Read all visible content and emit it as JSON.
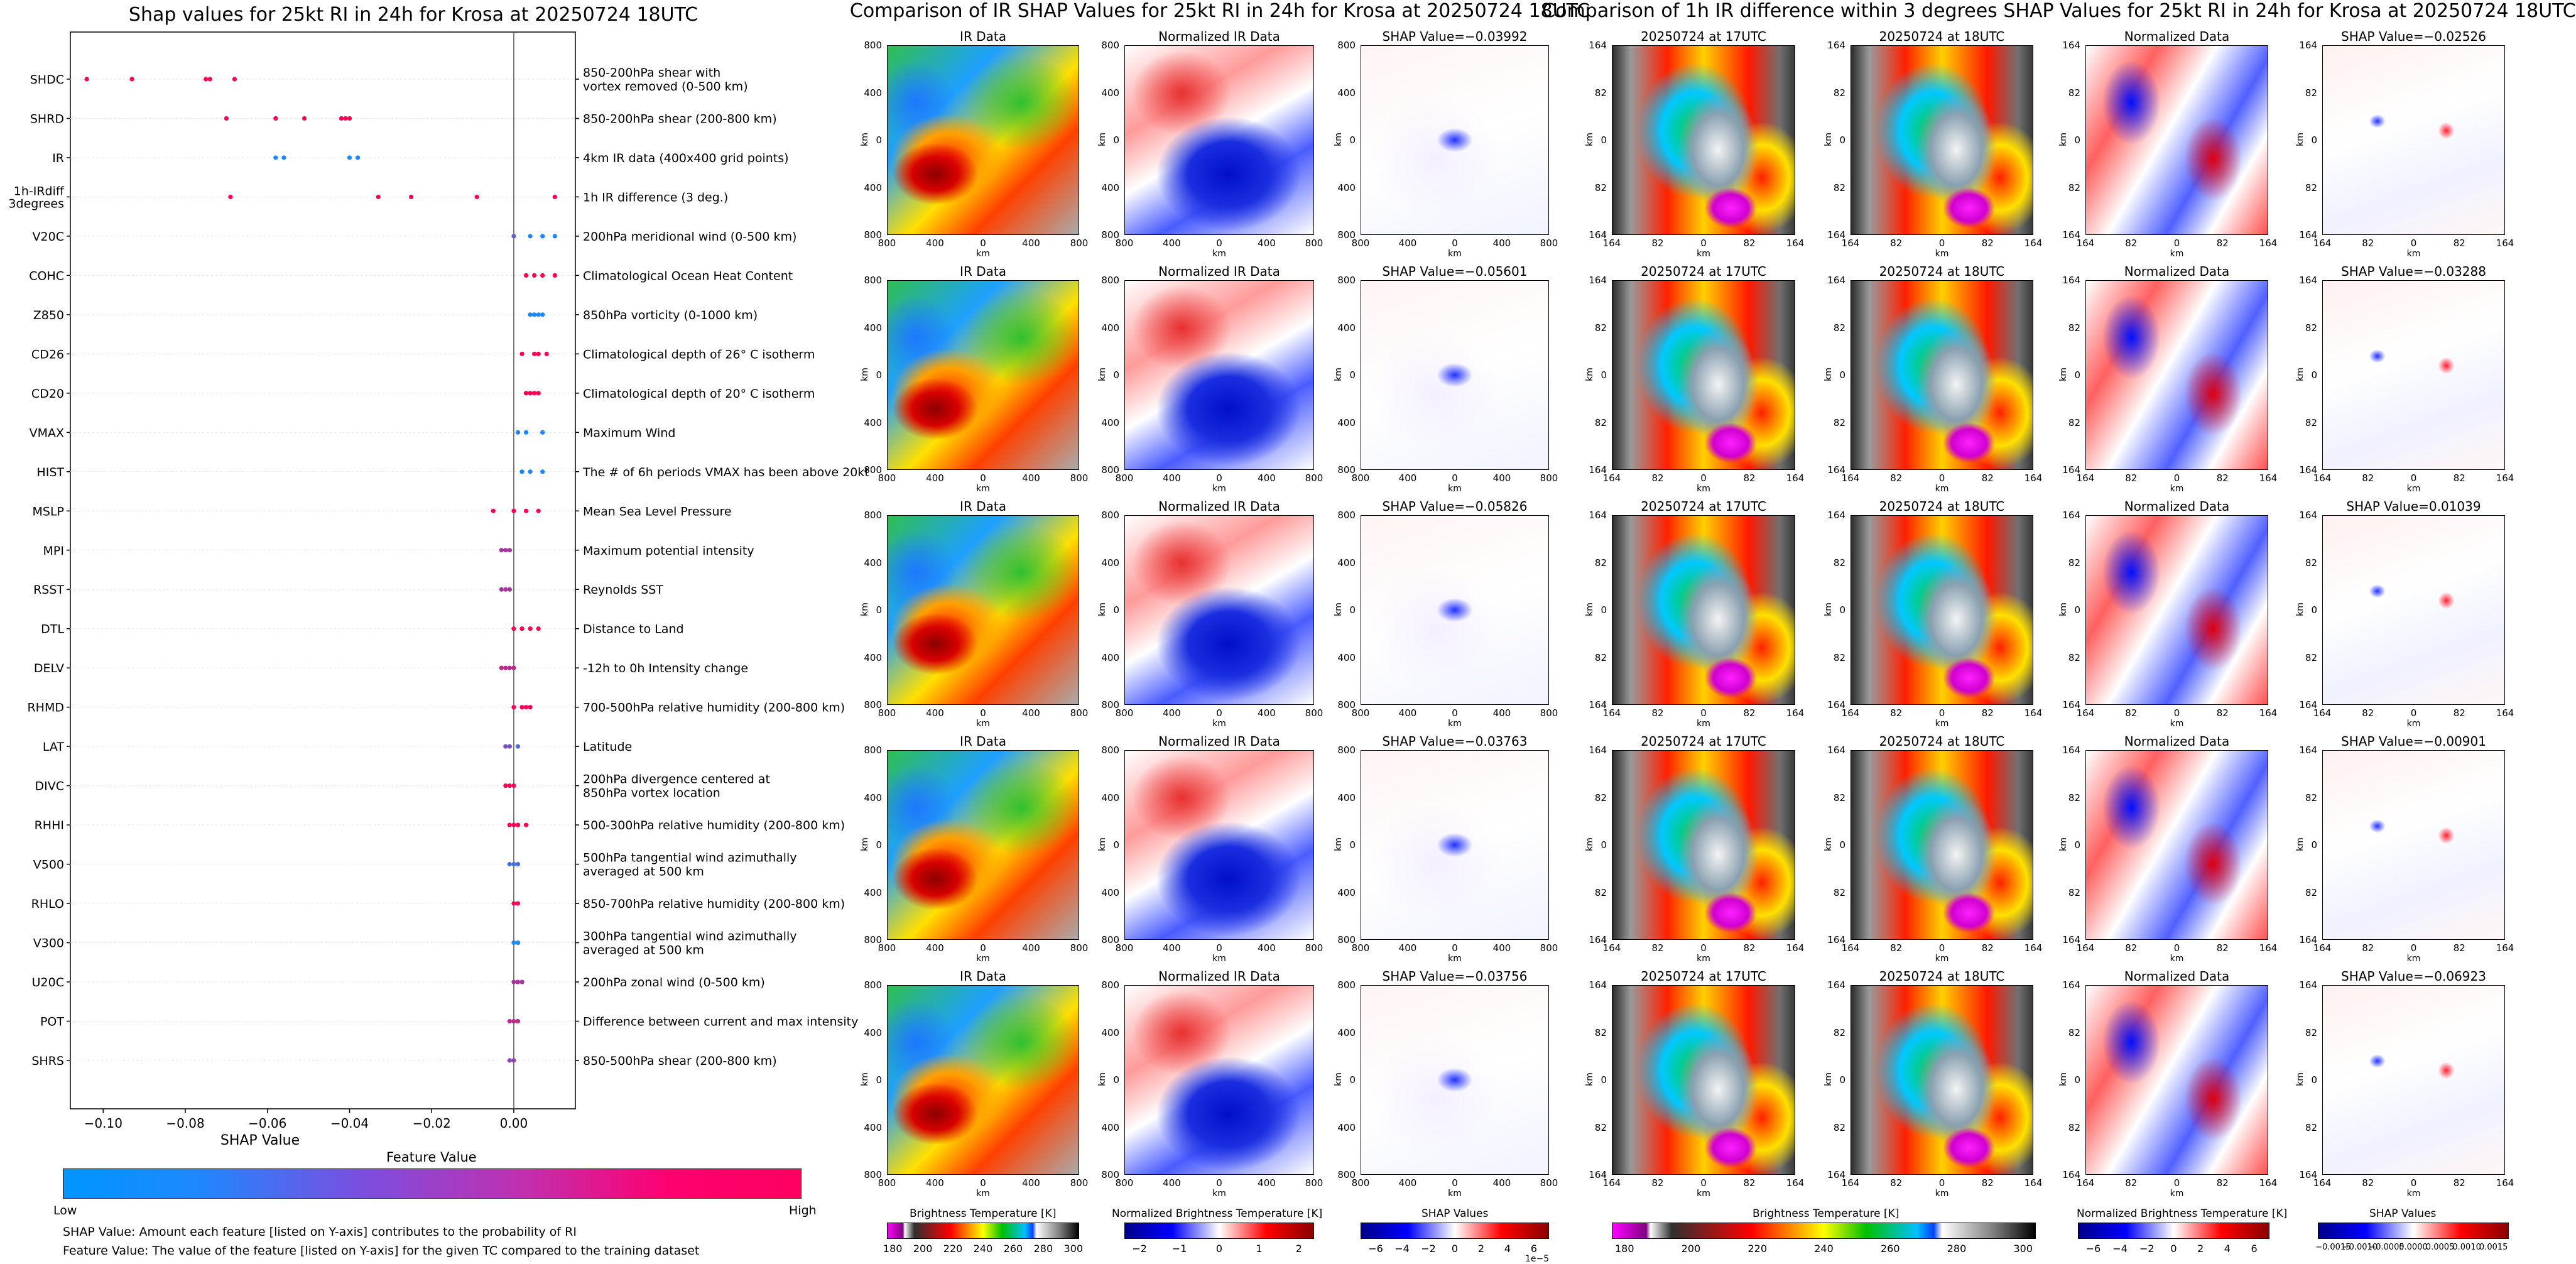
{
  "titles": {
    "left": "Shap values for 25kt RI in 24h for Krosa at 20250724 18UTC",
    "middle": "Comparison of IR SHAP Values for 25kt RI in 24h for Krosa at 20250724 18UTC",
    "right": "Comparison of 1h IR difference within 3 degrees SHAP Values for 25kt RI in 24h for Krosa at 20250724 18UTC"
  },
  "chart_data": [
    {
      "type": "scatter",
      "title": "Shap values for 25kt RI in 24h for Krosa at 20250724 18UTC",
      "xlabel": "SHAP Value",
      "xlim": [
        -0.108,
        0.015
      ],
      "xticks": [
        "−0.10",
        "−0.08",
        "−0.06",
        "−0.04",
        "−0.02",
        "0.00"
      ],
      "xtick_values": [
        -0.1,
        -0.08,
        -0.06,
        -0.04,
        -0.02,
        0.0
      ],
      "colorbar": {
        "title": "Feature Value",
        "low": "Low",
        "high": "High",
        "low_color": "#1e88ff",
        "high_color": "#ff0055"
      },
      "features": [
        {
          "code": "SHDC",
          "desc": [
            "850-200hPa shear with",
            "vortex removed (0-500 km)"
          ],
          "points": [
            [
              -0.104,
              1
            ],
            [
              -0.093,
              1
            ],
            [
              -0.075,
              1
            ],
            [
              -0.074,
              1
            ],
            [
              -0.068,
              1
            ]
          ]
        },
        {
          "code": "SHRD",
          "desc": [
            "850-200hPa shear (200-800 km)"
          ],
          "points": [
            [
              -0.07,
              1
            ],
            [
              -0.058,
              1
            ],
            [
              -0.051,
              1
            ],
            [
              -0.042,
              1
            ],
            [
              -0.041,
              1
            ],
            [
              -0.04,
              1
            ]
          ]
        },
        {
          "code": "IR",
          "desc": [
            "4km IR data (400x400 grid points)"
          ],
          "points": [
            [
              -0.058,
              0
            ],
            [
              -0.056,
              0
            ],
            [
              -0.04,
              0
            ],
            [
              -0.038,
              0
            ]
          ]
        },
        {
          "code": "1h-IRdiff|3degrees",
          "desc": [
            "1h IR difference (3 deg.)"
          ],
          "points": [
            [
              -0.069,
              1
            ],
            [
              -0.033,
              1
            ],
            [
              -0.025,
              1
            ],
            [
              -0.009,
              1
            ],
            [
              0.01,
              1
            ]
          ]
        },
        {
          "code": "V20C",
          "desc": [
            "200hPa meridional wind (0-500 km)"
          ],
          "points": [
            [
              0.0,
              0.3
            ],
            [
              0.004,
              0
            ],
            [
              0.007,
              0
            ],
            [
              0.01,
              0
            ]
          ]
        },
        {
          "code": "COHC",
          "desc": [
            "Climatological Ocean Heat Content"
          ],
          "points": [
            [
              0.003,
              1
            ],
            [
              0.005,
              1
            ],
            [
              0.007,
              1
            ],
            [
              0.01,
              1
            ]
          ]
        },
        {
          "code": "Z850",
          "desc": [
            "850hPa vorticity (0-1000 km)"
          ],
          "points": [
            [
              0.004,
              0
            ],
            [
              0.005,
              0
            ],
            [
              0.006,
              0
            ],
            [
              0.007,
              0
            ]
          ]
        },
        {
          "code": "CD26",
          "desc": [
            "Climatological depth of 26° C isotherm"
          ],
          "points": [
            [
              0.002,
              1
            ],
            [
              0.005,
              1
            ],
            [
              0.006,
              1
            ],
            [
              0.008,
              1
            ]
          ]
        },
        {
          "code": "CD20",
          "desc": [
            "Climatological depth of 20° C isotherm"
          ],
          "points": [
            [
              0.003,
              1
            ],
            [
              0.004,
              1
            ],
            [
              0.005,
              1
            ],
            [
              0.006,
              1
            ]
          ]
        },
        {
          "code": "VMAX",
          "desc": [
            "Maximum Wind"
          ],
          "points": [
            [
              0.001,
              0
            ],
            [
              0.003,
              0
            ],
            [
              0.007,
              0
            ]
          ]
        },
        {
          "code": "HIST",
          "desc": [
            "The # of 6h periods VMAX has been above 20kt"
          ],
          "points": [
            [
              0.002,
              0
            ],
            [
              0.004,
              0
            ],
            [
              0.007,
              0
            ]
          ]
        },
        {
          "code": "MSLP",
          "desc": [
            "Mean Sea Level Pressure"
          ],
          "points": [
            [
              -0.005,
              1
            ],
            [
              0.0,
              1
            ],
            [
              0.003,
              1
            ],
            [
              0.006,
              1
            ]
          ]
        },
        {
          "code": "MPI",
          "desc": [
            "Maximum potential intensity"
          ],
          "points": [
            [
              -0.003,
              0.6
            ],
            [
              -0.002,
              0.6
            ],
            [
              -0.001,
              0.6
            ]
          ]
        },
        {
          "code": "RSST",
          "desc": [
            "Reynolds SST"
          ],
          "points": [
            [
              -0.003,
              0.6
            ],
            [
              -0.002,
              0.6
            ],
            [
              -0.001,
              0.6
            ]
          ]
        },
        {
          "code": "DTL",
          "desc": [
            "Distance to Land"
          ],
          "points": [
            [
              0.0,
              1
            ],
            [
              0.002,
              1
            ],
            [
              0.004,
              1
            ],
            [
              0.006,
              1
            ]
          ]
        },
        {
          "code": "DELV",
          "desc": [
            "-12h to 0h Intensity change"
          ],
          "points": [
            [
              -0.003,
              0.7
            ],
            [
              -0.002,
              0.7
            ],
            [
              -0.001,
              0.7
            ],
            [
              0.0,
              0.7
            ]
          ]
        },
        {
          "code": "RHMD",
          "desc": [
            "700-500hPa relative humidity (200-800 km)"
          ],
          "points": [
            [
              0.0,
              1
            ],
            [
              0.002,
              1
            ],
            [
              0.003,
              1
            ],
            [
              0.004,
              1
            ]
          ]
        },
        {
          "code": "LAT",
          "desc": [
            "Latitude"
          ],
          "points": [
            [
              -0.002,
              0.4
            ],
            [
              -0.001,
              0.4
            ],
            [
              0.001,
              0.2
            ]
          ]
        },
        {
          "code": "DIVC",
          "desc": [
            "200hPa divergence centered at",
            "850hPa vortex location"
          ],
          "points": [
            [
              -0.002,
              1
            ],
            [
              -0.001,
              1
            ],
            [
              0.0,
              1
            ]
          ]
        },
        {
          "code": "RHHI",
          "desc": [
            "500-300hPa relative humidity (200-800 km)"
          ],
          "points": [
            [
              -0.001,
              1
            ],
            [
              0.0,
              1
            ],
            [
              0.001,
              1
            ],
            [
              0.003,
              1
            ]
          ]
        },
        {
          "code": "V500",
          "desc": [
            "500hPa tangential wind azimuthally",
            "averaged at 500 km"
          ],
          "points": [
            [
              -0.001,
              0.2
            ],
            [
              0.0,
              0.2
            ],
            [
              0.001,
              0.2
            ]
          ]
        },
        {
          "code": "RHLO",
          "desc": [
            "850-700hPa relative humidity (200-800 km)"
          ],
          "points": [
            [
              0.0,
              1
            ],
            [
              0.001,
              1
            ]
          ]
        },
        {
          "code": "V300",
          "desc": [
            "300hPa tangential wind azimuthally",
            "averaged at 500 km"
          ],
          "points": [
            [
              0.0,
              0
            ],
            [
              0.001,
              0
            ]
          ]
        },
        {
          "code": "U20C",
          "desc": [
            "200hPa zonal wind (0-500 km)"
          ],
          "points": [
            [
              0.0,
              0.6
            ],
            [
              0.001,
              0.6
            ],
            [
              0.002,
              0.6
            ]
          ]
        },
        {
          "code": "POT",
          "desc": [
            "Difference between current and max intensity"
          ],
          "points": [
            [
              -0.001,
              0.7
            ],
            [
              0.0,
              0.7
            ],
            [
              0.001,
              0.7
            ]
          ]
        },
        {
          "code": "SHRS",
          "desc": [
            "850-500hPa shear (200-800 km)"
          ],
          "points": [
            [
              -0.001,
              0.5
            ],
            [
              0.0,
              0.5
            ]
          ]
        }
      ]
    },
    {
      "type": "heatmap",
      "title": "Comparison of IR SHAP Values for 25kt RI in 24h for Krosa at 20250724 18UTC",
      "panel_titles": [
        "IR Data",
        "Normalized IR Data"
      ],
      "shap_values": [
        "−0.03992",
        "−0.05601",
        "−0.05826",
        "−0.03763",
        "−0.03756"
      ],
      "shap_prefix": "SHAP Value=",
      "axis_label": "km",
      "yticks": [
        "800",
        "400",
        "0",
        "400",
        "800"
      ],
      "xticks": [
        "800",
        "400",
        "0",
        "400",
        "800"
      ]
    },
    {
      "type": "heatmap",
      "title": "Comparison of 1h IR difference within 3 degrees SHAP Values for 25kt RI in 24h for Krosa at 20250724 18UTC",
      "panel_titles": [
        "20250724 at 17UTC",
        "20250724 at 18UTC",
        "Normalized Data"
      ],
      "shap_values": [
        "−0.02526",
        "−0.03288",
        "0.01039",
        "−0.00901",
        "−0.06923"
      ],
      "shap_prefix": "SHAP Value=",
      "axis_label": "km",
      "yticks": [
        "164",
        "82",
        "0",
        "82",
        "164"
      ],
      "xticks": [
        "164",
        "82",
        "0",
        "82",
        "164"
      ]
    }
  ],
  "colorbars": {
    "bt1": {
      "label": "Brightness Temperature [K]",
      "ticks": [
        "180",
        "200",
        "220",
        "240",
        "260",
        "280",
        "300"
      ]
    },
    "norm1": {
      "label": "Normalized Brightness Temperature [K]",
      "ticks": [
        "−2",
        "−1",
        "0",
        "1",
        "2"
      ]
    },
    "shap1": {
      "label": "SHAP Values",
      "ticks": [
        "−6",
        "−4",
        "−2",
        "0",
        "2",
        "4",
        "6"
      ],
      "offset": "1e−5"
    },
    "bt2": {
      "label": "Brightness Temperature [K]",
      "ticks": [
        "180",
        "200",
        "220",
        "240",
        "260",
        "280",
        "300"
      ]
    },
    "norm2": {
      "label": "Normalized Brightness Temperature [K]",
      "ticks": [
        "−6",
        "−4",
        "−2",
        "0",
        "2",
        "4",
        "6"
      ]
    },
    "shap2": {
      "label": "SHAP Values",
      "ticks": [
        "−0.0015",
        "−0.0010",
        "−0.0005",
        "0.0000",
        "0.0005",
        "0.0010",
        "0.0015"
      ]
    }
  },
  "notes": {
    "line1": "SHAP Value: Amount each feature [listed on Y-axis] contributes to the probability of RI",
    "line2": "Feature Value: The value of the feature [listed on Y-axis] for the given TC compared to the training dataset"
  }
}
